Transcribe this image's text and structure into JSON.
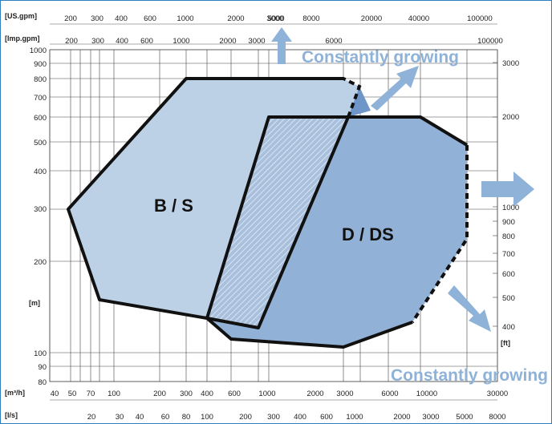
{
  "axes": {
    "top1": {
      "unit_label": "[US.gpm]",
      "ticks": [
        "200",
        "300",
        "400",
        "600",
        "1000",
        "2000",
        "3000",
        "5000",
        "8000",
        "20000",
        "40000",
        "100000"
      ]
    },
    "top2": {
      "unit_label": "[Imp.gpm]",
      "ticks": [
        "200",
        "300",
        "400",
        "600",
        "1000",
        "2000",
        "3000",
        "6000",
        "100000"
      ]
    },
    "left": {
      "unit_label": "[m]",
      "ticks": [
        "1000",
        "900",
        "800",
        "700",
        "600",
        "500",
        "400",
        "300",
        "200",
        "100",
        "90",
        "80"
      ]
    },
    "right": {
      "unit_label": "[ft]",
      "ticks": [
        "3000",
        "2000",
        "1000",
        "900",
        "800",
        "700",
        "600",
        "500",
        "400"
      ]
    },
    "bottom1": {
      "unit_label": "[m³/h]",
      "ticks": [
        "40",
        "50",
        "70",
        "100",
        "200",
        "300",
        "400",
        "600",
        "1000",
        "2000",
        "3000",
        "6000",
        "10000",
        "30000"
      ]
    },
    "bottom2": {
      "unit_label": "[l/s]",
      "ticks": [
        "20",
        "30",
        "40",
        "60",
        "80",
        "100",
        "200",
        "300",
        "400",
        "600",
        "1000",
        "2000",
        "3000",
        "5000",
        "8000"
      ]
    }
  },
  "regions": {
    "bs": {
      "label": "B / S",
      "fill": "#bcd0e6"
    },
    "dds": {
      "label": "D / DS",
      "fill": "#92b1d6"
    },
    "overlap": {
      "fill": "#9cb6d6"
    }
  },
  "annotations": {
    "top": "Constantly growing",
    "bottom": "Constantly growing"
  },
  "colors": {
    "arrow": "#8eb2d8",
    "border": "#2f7fbf",
    "outline": "#111111"
  }
}
